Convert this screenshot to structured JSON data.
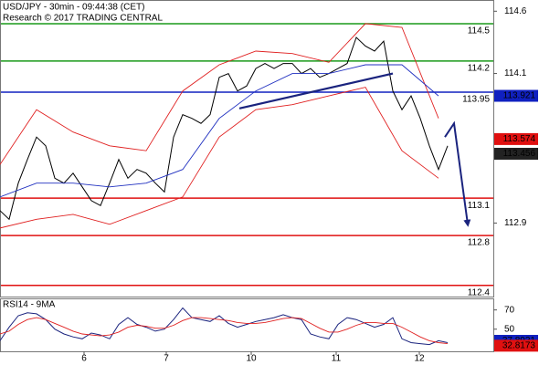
{
  "chart_data": [
    {
      "type": "line",
      "title": "USD/JPY - 30min - 09:44:38 (CET)",
      "subtitle": "Research © 2017 TRADING CENTRAL",
      "xlim": [
        0,
        108
      ],
      "ylim": [
        112.31,
        114.69
      ],
      "yticks": [
        112.9,
        114.1,
        114.6
      ],
      "series": [
        {
          "color": "#000000",
          "x": [
            0,
            2,
            4,
            6,
            8,
            10,
            12,
            14,
            16,
            18,
            20,
            22,
            24,
            26,
            28,
            30,
            32,
            34,
            36,
            38,
            40,
            42,
            44,
            46,
            48,
            50,
            52,
            54,
            56,
            58,
            60,
            62,
            64,
            66,
            68,
            70,
            72,
            74,
            76,
            78,
            80,
            82,
            84,
            86,
            88,
            90,
            92,
            94,
            96,
            98
          ],
          "values": [
            113.0,
            112.93,
            113.22,
            113.41,
            113.59,
            113.52,
            113.26,
            113.22,
            113.3,
            113.19,
            113.08,
            113.04,
            113.22,
            113.41,
            113.26,
            113.33,
            113.3,
            113.22,
            113.15,
            113.59,
            113.77,
            113.74,
            113.7,
            113.77,
            114.07,
            114.1,
            113.96,
            114.0,
            114.14,
            114.18,
            114.14,
            114.18,
            114.18,
            114.1,
            114.14,
            114.07,
            114.1,
            114.14,
            114.18,
            114.39,
            114.32,
            114.28,
            114.36,
            113.96,
            113.81,
            113.92,
            113.74,
            113.52,
            113.33,
            113.52
          ]
        },
        {
          "color": "#e02020",
          "x": [
            0,
            8,
            16,
            24,
            32,
            40,
            48,
            56,
            64,
            72,
            80,
            88,
            96
          ],
          "values": [
            113.37,
            113.81,
            113.63,
            113.52,
            113.48,
            113.96,
            114.17,
            114.28,
            114.26,
            114.19,
            114.5,
            114.47,
            113.74
          ]
        },
        {
          "color": "#e02020",
          "x": [
            0,
            8,
            16,
            24,
            32,
            40,
            48,
            56,
            64,
            72,
            80,
            88,
            96
          ],
          "values": [
            112.86,
            112.93,
            112.97,
            112.89,
            113.0,
            113.11,
            113.59,
            113.81,
            113.85,
            113.92,
            113.99,
            113.48,
            113.26
          ]
        },
        {
          "color": "#2030c0",
          "x": [
            0,
            8,
            16,
            24,
            32,
            40,
            48,
            56,
            64,
            72,
            80,
            88,
            96
          ],
          "values": [
            113.11,
            113.22,
            113.22,
            113.19,
            113.22,
            113.33,
            113.74,
            113.96,
            114.1,
            114.1,
            114.17,
            114.17,
            113.92
          ]
        }
      ],
      "levels": [
        {
          "value": 114.5,
          "color": "#1a9a1a"
        },
        {
          "value": 114.2,
          "color": "#1a9a1a"
        },
        {
          "value": 113.95,
          "color": "#1020c0"
        },
        {
          "value": 113.1,
          "color": "#e01010"
        },
        {
          "value": 112.8,
          "color": "#e01010"
        },
        {
          "value": 112.4,
          "color": "#e01010"
        }
      ],
      "trendline": {
        "color": "#1a237e",
        "x": [
          52.4,
          86
        ],
        "values": [
          113.82,
          114.1
        ]
      },
      "forecast": {
        "color": "#1a237e",
        "x": [
          97.4,
          99.4,
          102.4
        ],
        "values": [
          113.59,
          113.7,
          112.89
        ]
      },
      "markers": [
        {
          "value": 113.921,
          "color": "#1020c0"
        },
        {
          "value": 113.574,
          "color": "#e01010"
        },
        {
          "value": 113.456,
          "color": "#222222"
        }
      ]
    },
    {
      "type": "line",
      "title": "RSI14 - 9MA",
      "xlim": [
        0,
        108
      ],
      "ylim": [
        27,
        82
      ],
      "yticks": [
        50,
        70
      ],
      "xticks": [
        {
          "value": 18.4,
          "label": "6"
        },
        {
          "value": 36.4,
          "label": "7"
        },
        {
          "value": 55,
          "label": "10"
        },
        {
          "value": 73.6,
          "label": "11"
        },
        {
          "value": 91.8,
          "label": "12"
        }
      ],
      "series": [
        {
          "color": "#1a237e",
          "x": [
            0,
            2,
            4,
            6,
            8,
            10,
            12,
            14,
            16,
            18,
            20,
            22,
            24,
            26,
            28,
            30,
            32,
            34,
            36,
            38,
            40,
            42,
            44,
            46,
            48,
            50,
            52,
            54,
            56,
            58,
            60,
            62,
            64,
            66,
            68,
            70,
            72,
            74,
            76,
            78,
            80,
            82,
            84,
            86,
            88,
            90,
            92,
            94,
            96,
            98
          ],
          "values": [
            38,
            52,
            64,
            67,
            66,
            60,
            50,
            45,
            42,
            40,
            46,
            44,
            40,
            55,
            62,
            55,
            52,
            48,
            50,
            60,
            72,
            62,
            60,
            58,
            64,
            56,
            52,
            55,
            58,
            60,
            62,
            65,
            62,
            60,
            45,
            42,
            40,
            55,
            62,
            60,
            56,
            52,
            55,
            62,
            40,
            36,
            35,
            34,
            38,
            36
          ]
        },
        {
          "color": "#e02020",
          "x": [
            0,
            2,
            4,
            6,
            8,
            10,
            12,
            14,
            16,
            18,
            20,
            22,
            24,
            26,
            28,
            30,
            32,
            34,
            36,
            38,
            40,
            42,
            44,
            46,
            48,
            50,
            52,
            54,
            56,
            58,
            60,
            62,
            64,
            66,
            68,
            70,
            72,
            74,
            76,
            78,
            80,
            82,
            84,
            86,
            88,
            90,
            92,
            94,
            96,
            98
          ],
          "values": [
            45,
            48,
            55,
            60,
            62,
            60,
            56,
            52,
            48,
            45,
            44,
            43,
            44,
            47,
            52,
            54,
            53,
            51,
            51,
            54,
            59,
            62,
            62,
            61,
            60,
            59,
            57,
            56,
            56,
            57,
            59,
            61,
            62,
            61,
            56,
            51,
            47,
            47,
            50,
            54,
            57,
            57,
            56,
            56,
            52,
            47,
            42,
            38,
            36,
            35
          ]
        }
      ],
      "markers": [
        {
          "value": 37.8921,
          "color": "#1020c0"
        },
        {
          "value": 32.8173,
          "color": "#e01010"
        }
      ]
    }
  ]
}
